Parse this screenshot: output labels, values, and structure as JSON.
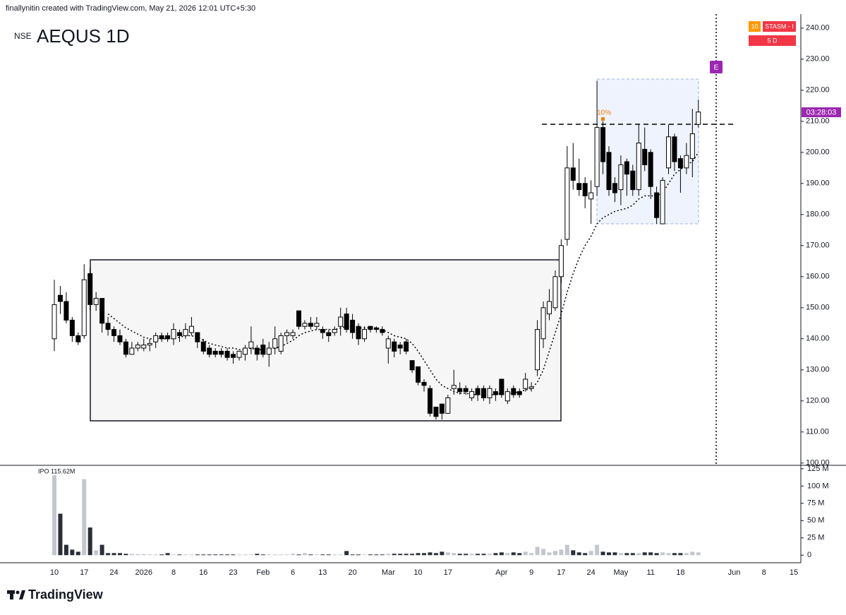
{
  "chart_data": {
    "type": "candlestick",
    "attribution": "finallynitin created with TradingView.com, May 21, 2026 12:01 UTC+5:30",
    "exchange": "NSE",
    "title": "AEQUS 1D",
    "categories": [
      "10",
      null,
      null,
      null,
      null,
      "17",
      null,
      null,
      null,
      null,
      "24",
      null,
      null,
      null,
      null,
      "2026",
      null,
      null,
      null,
      null,
      "8",
      null,
      null,
      null,
      null,
      "16",
      null,
      null,
      null,
      null,
      "23",
      null,
      null,
      null,
      null,
      "Feb",
      null,
      null,
      null,
      null,
      "6",
      null,
      null,
      null,
      null,
      "13",
      null,
      null,
      null,
      null,
      "20",
      null,
      null,
      null,
      null,
      null,
      "Mar",
      null,
      null,
      null,
      null,
      "10",
      null,
      null,
      null,
      null,
      "17",
      null,
      null,
      null,
      null,
      null,
      null,
      null,
      null,
      "Apr",
      null,
      null,
      null,
      null,
      "9",
      null,
      null,
      null,
      null,
      "17",
      null,
      null,
      null,
      null,
      "24",
      null,
      null,
      null,
      null,
      "May",
      null,
      null,
      null,
      null,
      "11",
      null,
      null,
      null,
      null,
      "18",
      null,
      null,
      null,
      null,
      null,
      null,
      null,
      null,
      "Jun",
      null,
      null,
      null,
      null,
      "8",
      null,
      null,
      null,
      null,
      "15"
    ],
    "open": [
      140,
      154,
      152,
      146,
      141,
      141,
      161,
      151,
      153,
      145,
      143,
      141,
      139,
      135,
      137,
      137,
      138,
      139,
      141,
      141,
      140,
      142,
      141,
      142,
      142,
      139,
      137,
      136,
      136,
      136,
      135,
      134,
      135,
      137,
      137,
      138,
      135,
      137,
      136,
      141,
      141,
      149,
      144,
      145,
      144,
      143,
      142,
      142,
      144,
      148,
      146,
      144,
      140,
      144,
      143.5,
      143,
      137,
      139,
      138,
      139,
      133,
      131,
      126,
      124,
      118,
      119,
      116,
      124,
      124,
      124,
      121,
      124,
      124,
      121,
      123,
      127,
      120,
      124,
      123,
      124,
      124,
      130,
      140,
      148,
      150,
      160,
      172,
      195,
      190,
      190,
      185,
      189,
      208,
      200,
      190,
      188,
      197,
      194,
      188,
      201,
      200,
      187,
      177,
      195,
      205,
      198,
      195,
      198,
      209,
      null,
      null,
      null,
      null,
      null,
      null,
      null,
      null,
      null,
      null,
      null,
      null,
      null,
      null,
      null,
      null
    ],
    "high": [
      159,
      157,
      155,
      147,
      142,
      164,
      163,
      155,
      153,
      147,
      144,
      143,
      140,
      139,
      139,
      140,
      140,
      142,
      142,
      142,
      145,
      143,
      145,
      147,
      142,
      140,
      138,
      137,
      137,
      137,
      136,
      136,
      138,
      144,
      138,
      140,
      139,
      144,
      142,
      143,
      143,
      149,
      146,
      147,
      147,
      144,
      143,
      144,
      150,
      150,
      148,
      145,
      144,
      144,
      144,
      144,
      141,
      140,
      139,
      140,
      133,
      131,
      127,
      125,
      118,
      119,
      122,
      130,
      126,
      125,
      124,
      125,
      125,
      125,
      124,
      127,
      124,
      125,
      124,
      129,
      126,
      146,
      152,
      156,
      162,
      172,
      202,
      203,
      198,
      192,
      191,
      223,
      210,
      202,
      192,
      199,
      198,
      196,
      209,
      208,
      201,
      189,
      192,
      209,
      206,
      199,
      203,
      214,
      217,
      null,
      null,
      null,
      null,
      null,
      null,
      null,
      null,
      null,
      null,
      null,
      null,
      null,
      null,
      null,
      null
    ],
    "low": [
      136,
      148,
      145,
      139,
      138,
      140,
      149,
      149,
      142,
      141,
      139,
      138,
      134,
      135,
      136,
      136,
      136,
      137,
      139,
      139,
      138,
      139,
      140,
      141,
      137,
      135,
      134,
      134,
      134,
      133,
      132,
      133,
      133,
      135,
      133,
      134,
      131,
      135,
      135,
      139,
      140,
      143,
      143,
      143,
      143,
      140,
      139,
      141,
      141,
      142,
      140,
      138,
      139,
      142,
      142,
      141,
      132,
      134,
      135,
      135,
      129,
      125,
      123,
      115,
      114,
      114,
      116,
      122,
      122,
      122,
      120,
      120,
      120,
      119,
      120,
      121,
      119,
      121,
      121,
      123,
      123,
      128,
      137,
      146,
      149,
      158,
      170,
      188,
      186,
      182,
      177,
      186,
      193,
      186,
      184,
      183,
      186,
      186,
      186,
      194,
      185,
      177,
      177,
      193,
      194,
      187,
      193,
      192,
      208,
      null,
      null,
      null,
      null,
      null,
      null,
      null,
      null,
      null,
      null,
      null,
      null,
      null,
      null,
      null,
      null
    ],
    "close": [
      151,
      152,
      146,
      141,
      139,
      159,
      151,
      153,
      145,
      143,
      141,
      139,
      135,
      137,
      138,
      138,
      138.5,
      141,
      140,
      140,
      143,
      141,
      143,
      144,
      139,
      136,
      135,
      135,
      135,
      134,
      134,
      136,
      137,
      139,
      135,
      135,
      137,
      140,
      141,
      142,
      142,
      144,
      145,
      144,
      145,
      142,
      141,
      143,
      147,
      143,
      142,
      140,
      143,
      143,
      143,
      142,
      140,
      136,
      137,
      136,
      130,
      126,
      125,
      116,
      115,
      116,
      121,
      125,
      123,
      123,
      123,
      122,
      121,
      124,
      122,
      122,
      123,
      122,
      122,
      127,
      124.5,
      143,
      150,
      152,
      160,
      170,
      195,
      191,
      188,
      186,
      187,
      208,
      197,
      188,
      187,
      196,
      193,
      188,
      203,
      196,
      189,
      179,
      191,
      205,
      197,
      195,
      199,
      206,
      213,
      null,
      null,
      null,
      null,
      null,
      null,
      null,
      null,
      null,
      null,
      null,
      null,
      null,
      null,
      null,
      null
    ],
    "colors": {
      "up": "#ffffff",
      "down": "#000000",
      "border": "#000000"
    },
    "ylim": [
      99.5,
      244.5
    ],
    "yticks": [
      {
        "value": 100,
        "label": "100.00"
      },
      {
        "value": 110,
        "label": "110.00"
      },
      {
        "value": 120,
        "label": "120.00"
      },
      {
        "value": 130,
        "label": "130.00"
      },
      {
        "value": 140,
        "label": "140.00"
      },
      {
        "value": 150,
        "label": "150.00"
      },
      {
        "value": 160,
        "label": "160.00"
      },
      {
        "value": 170,
        "label": "170.00"
      },
      {
        "value": 180,
        "label": "180.00"
      },
      {
        "value": 190,
        "label": "190.00"
      },
      {
        "value": 200,
        "label": "200.00"
      },
      {
        "value": 210,
        "label": "210.00"
      },
      {
        "value": 220,
        "label": "220.00"
      },
      {
        "value": 230,
        "label": "230.00"
      },
      {
        "value": 240,
        "label": "240.00"
      }
    ],
    "ma": {
      "color": "#000000",
      "values": [
        null,
        null,
        null,
        null,
        null,
        null,
        null,
        null,
        null,
        148,
        146.5,
        145,
        143.5,
        142.5,
        141.5,
        140.5,
        140,
        140,
        140,
        140,
        140,
        140.5,
        141,
        141,
        140.5,
        139.5,
        138.5,
        138,
        137.5,
        137,
        137,
        136.5,
        136.5,
        137,
        136.5,
        136.5,
        136.5,
        137,
        137.5,
        138.5,
        139.5,
        141,
        142,
        142.5,
        143,
        143,
        143,
        143,
        143.5,
        144,
        144,
        143.5,
        143.5,
        143.5,
        143.5,
        143,
        142,
        141,
        140.5,
        140,
        138.5,
        136,
        133,
        130,
        127,
        125,
        124,
        123,
        122.5,
        122.5,
        122,
        122,
        122,
        122,
        122,
        122.5,
        122.5,
        122.5,
        123,
        123.5,
        124,
        126,
        130,
        136,
        142,
        148,
        155,
        161,
        166,
        170,
        173,
        177,
        179,
        180,
        181,
        181.5,
        182,
        183,
        185,
        186,
        186,
        186,
        187,
        190,
        193,
        194.5,
        196,
        197,
        200,
        null,
        null,
        null,
        null,
        null,
        null,
        null,
        null,
        null,
        null,
        null,
        null,
        null,
        null,
        null,
        null
      ]
    },
    "volume": {
      "annotation": "IPO 115.62M",
      "colors": {
        "up": "#c3c6ce",
        "down": "#2a2e39"
      },
      "values": [
        115.62,
        60,
        15,
        8,
        5,
        110,
        40,
        7,
        15,
        3,
        3,
        3,
        2,
        2,
        1.5,
        1.5,
        1,
        1,
        1,
        3,
        1,
        1,
        1,
        1,
        1,
        1,
        1,
        1,
        1,
        1,
        1,
        1,
        1,
        1,
        2,
        1,
        1,
        1,
        1,
        1,
        2,
        1,
        3,
        1,
        1,
        1,
        1,
        1,
        1,
        6,
        1,
        1,
        1,
        1,
        1,
        1,
        2,
        2,
        2,
        2,
        2,
        3,
        3,
        4,
        3,
        5,
        4,
        3,
        2,
        2,
        2,
        2,
        2,
        2,
        3,
        4,
        3,
        4,
        3,
        5,
        3,
        12,
        9,
        4,
        6,
        8,
        15,
        7,
        4,
        3,
        6,
        15,
        5,
        4,
        4,
        3,
        3,
        3,
        3,
        4,
        4,
        3,
        4,
        3,
        3,
        3,
        3,
        5,
        4,
        null,
        null,
        null,
        null,
        null,
        null,
        null,
        null,
        null,
        null,
        null,
        null,
        null,
        null,
        null,
        null
      ],
      "ylim": [
        -11,
        129
      ],
      "yticks": [
        {
          "value": 125,
          "label": "125 M"
        },
        {
          "value": 100,
          "label": "100 M"
        },
        {
          "value": 75,
          "label": "75 M"
        },
        {
          "value": 50,
          "label": "50 M"
        },
        {
          "value": 25,
          "label": "25 M"
        },
        0
      ]
    },
    "countdown_label": "03:28:03",
    "percent_label": "10%",
    "event_marker": "E",
    "badges": [
      "10",
      "STASM - I",
      "5 D"
    ],
    "footer": "TradingView"
  }
}
